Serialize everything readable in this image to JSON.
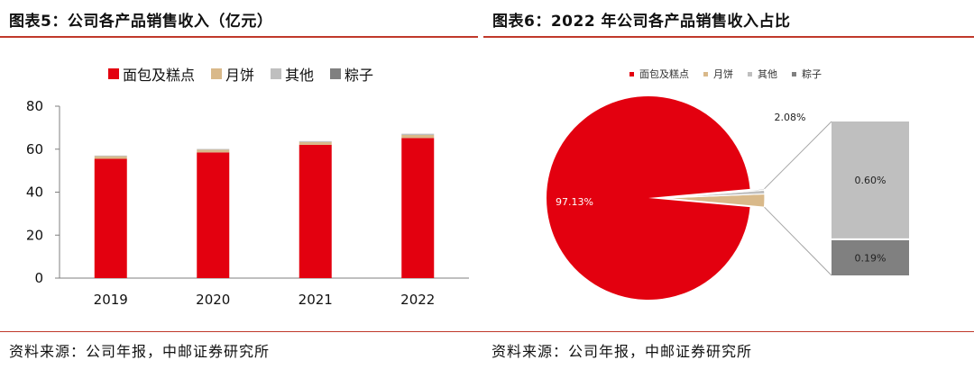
{
  "left_panel": {
    "title": "图表5：公司各产品销售收入（亿元）",
    "source": "资料来源：公司年报，中邮证券研究所"
  },
  "right_panel": {
    "title": "图表6：2022 年公司各产品销售收入占比",
    "source": "资料来源：公司年报，中邮证券研究所"
  },
  "colors": {
    "bread": "#e3000f",
    "mooncake": "#d9b98a",
    "other": "#bfbfbf",
    "zongzi": "#808080",
    "accent": "#c0392b"
  },
  "chart_data": [
    {
      "type": "bar",
      "stacked": true,
      "categories": [
        "2019",
        "2020",
        "2021",
        "2022"
      ],
      "series": [
        {
          "name": "面包及糕点",
          "values": [
            55.5,
            58.5,
            62.0,
            65.2
          ]
        },
        {
          "name": "月饼",
          "values": [
            1.2,
            1.2,
            1.3,
            1.4
          ]
        },
        {
          "name": "其他",
          "values": [
            0.2,
            0.2,
            0.3,
            0.4
          ]
        },
        {
          "name": "粽子",
          "values": [
            0.1,
            0.1,
            0.1,
            0.1
          ]
        }
      ],
      "ylim": [
        0,
        80
      ],
      "yticks": [
        0,
        20,
        40,
        60,
        80
      ],
      "legend_position": "top",
      "grid": false
    },
    {
      "type": "pie",
      "style": "pie-of-bar",
      "labels": [
        "面包及糕点",
        "月饼",
        "其他",
        "粽子"
      ],
      "values": [
        97.13,
        2.08,
        0.6,
        0.19
      ],
      "value_labels": [
        "97.13%",
        "2.08%",
        "0.60%",
        "0.19%"
      ],
      "legend_position": "top"
    }
  ]
}
